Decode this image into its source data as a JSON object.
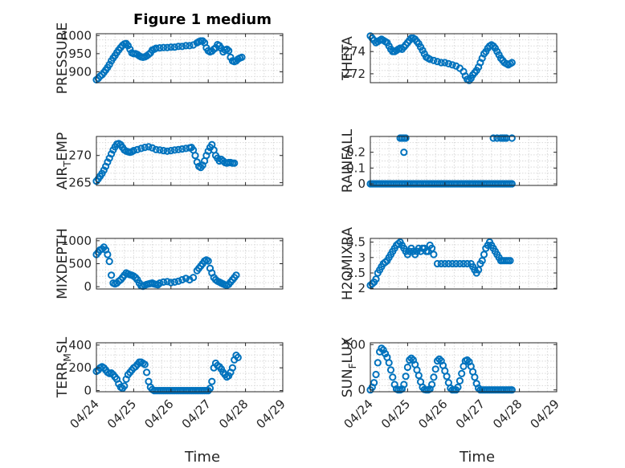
{
  "figure": {
    "title": "Figure 1 medium",
    "x_tick_labels": [
      "04/24",
      "04/25",
      "04/26",
      "04/27",
      "04/28",
      "04/29"
    ],
    "x_label": "Time",
    "marker_color": "#0072BD",
    "grid": true
  },
  "chart_data": [
    {
      "type": "scatter",
      "marker": "circle",
      "ylabel": "PRESSURE",
      "subscript": "",
      "ylabel_tail": "",
      "yticks": [
        900,
        950,
        1000
      ],
      "ylim": [
        870,
        1005
      ],
      "xlim": [
        0,
        5
      ],
      "grid": true,
      "x": [
        0,
        0.05,
        0.1,
        0.15,
        0.2,
        0.25,
        0.3,
        0.35,
        0.4,
        0.45,
        0.5,
        0.55,
        0.6,
        0.65,
        0.7,
        0.75,
        0.8,
        0.85,
        0.9,
        0.95,
        1.0,
        1.05,
        1.1,
        1.15,
        1.2,
        1.25,
        1.3,
        1.35,
        1.4,
        1.45,
        1.5,
        1.55,
        1.6,
        1.7,
        1.8,
        1.9,
        2.0,
        2.1,
        2.2,
        2.3,
        2.4,
        2.5,
        2.6,
        2.7,
        2.75,
        2.8,
        2.85,
        2.9,
        2.95,
        3.0,
        3.05,
        3.1,
        3.15,
        3.2,
        3.25,
        3.3,
        3.35,
        3.4,
        3.45,
        3.5,
        3.55,
        3.6,
        3.65,
        3.7,
        3.75,
        3.8,
        3.85,
        3.9
      ],
      "y": [
        878,
        882,
        888,
        892,
        898,
        905,
        912,
        920,
        930,
        938,
        945,
        953,
        960,
        967,
        973,
        977,
        978,
        972,
        962,
        952,
        950,
        950,
        948,
        944,
        941,
        940,
        941,
        944,
        948,
        952,
        960,
        962,
        965,
        966,
        967,
        967,
        968,
        968,
        970,
        970,
        972,
        972,
        974,
        980,
        983,
        985,
        985,
        980,
        966,
        958,
        955,
        957,
        962,
        966,
        975,
        972,
        965,
        955,
        960,
        962,
        958,
        940,
        930,
        928,
        930,
        935,
        938,
        940
      ]
    },
    {
      "type": "scatter",
      "marker": "circle",
      "ylabel": "THETA",
      "subscript": "",
      "ylabel_tail": "",
      "yticks": [
        272,
        274
      ],
      "ylim": [
        271.2,
        275.6
      ],
      "xlim": [
        0,
        5
      ],
      "grid": true,
      "x": [
        0,
        0.05,
        0.1,
        0.15,
        0.2,
        0.25,
        0.3,
        0.35,
        0.4,
        0.45,
        0.5,
        0.55,
        0.6,
        0.65,
        0.7,
        0.75,
        0.8,
        0.85,
        0.9,
        0.95,
        1.0,
        1.05,
        1.1,
        1.15,
        1.2,
        1.25,
        1.3,
        1.35,
        1.4,
        1.45,
        1.5,
        1.55,
        1.6,
        1.7,
        1.8,
        1.9,
        2.0,
        2.1,
        2.2,
        2.3,
        2.4,
        2.5,
        2.55,
        2.6,
        2.65,
        2.7,
        2.75,
        2.8,
        2.85,
        2.9,
        2.95,
        3.0,
        3.05,
        3.1,
        3.15,
        3.2,
        3.25,
        3.3,
        3.35,
        3.4,
        3.45,
        3.5,
        3.55,
        3.6,
        3.65,
        3.7,
        3.75,
        3.8
      ],
      "y": [
        275.4,
        275.2,
        275.0,
        274.8,
        274.9,
        275.0,
        275.1,
        275.0,
        274.9,
        274.8,
        274.5,
        274.2,
        274.0,
        274.0,
        274.1,
        274.2,
        274.3,
        274.2,
        274.4,
        274.6,
        274.8,
        275.0,
        275.2,
        275.2,
        275.1,
        274.9,
        274.7,
        274.4,
        274.1,
        273.8,
        273.5,
        273.4,
        273.3,
        273.2,
        273.1,
        273.0,
        273.0,
        272.9,
        272.8,
        272.7,
        272.5,
        272.2,
        271.8,
        271.5,
        271.4,
        271.6,
        271.9,
        272.1,
        272.3,
        272.6,
        273.0,
        273.4,
        273.8,
        274.0,
        274.3,
        274.5,
        274.6,
        274.5,
        274.3,
        274.0,
        273.7,
        273.4,
        273.2,
        273.0,
        272.9,
        272.8,
        272.9,
        273.0
      ]
    },
    {
      "type": "scatter",
      "marker": "circle",
      "ylabel": "AIR",
      "subscript": "T",
      "ylabel_tail": "EMP",
      "yticks": [
        265,
        270
      ],
      "ylim": [
        264.5,
        273.5
      ],
      "xlim": [
        0,
        5
      ],
      "grid": true,
      "x": [
        0,
        0.05,
        0.1,
        0.15,
        0.2,
        0.25,
        0.3,
        0.35,
        0.4,
        0.45,
        0.5,
        0.55,
        0.6,
        0.65,
        0.7,
        0.75,
        0.8,
        0.85,
        0.9,
        0.95,
        1.0,
        1.1,
        1.2,
        1.3,
        1.4,
        1.5,
        1.6,
        1.7,
        1.8,
        1.9,
        2.0,
        2.1,
        2.2,
        2.3,
        2.4,
        2.5,
        2.55,
        2.6,
        2.65,
        2.7,
        2.75,
        2.8,
        2.85,
        2.9,
        2.95,
        3.0,
        3.05,
        3.1,
        3.15,
        3.2,
        3.25,
        3.3,
        3.35,
        3.4,
        3.45,
        3.5,
        3.55,
        3.6,
        3.65,
        3.7
      ],
      "y": [
        265.3,
        265.7,
        266.2,
        266.7,
        267.3,
        268.0,
        268.8,
        269.5,
        270.3,
        271.0,
        271.6,
        272.1,
        272.2,
        272.0,
        271.5,
        271.0,
        270.8,
        270.7,
        270.6,
        270.7,
        270.9,
        271.1,
        271.3,
        271.5,
        271.6,
        271.4,
        271.1,
        271.0,
        270.9,
        270.8,
        270.9,
        271.0,
        271.1,
        271.2,
        271.3,
        271.4,
        271.5,
        271.0,
        270.0,
        268.8,
        268.0,
        267.8,
        268.2,
        269.0,
        270.0,
        270.8,
        271.5,
        272.0,
        271.0,
        270.0,
        269.5,
        269.0,
        269.3,
        269.0,
        268.7,
        268.6,
        268.7,
        268.7,
        268.6,
        268.6
      ]
    },
    {
      "type": "scatter",
      "marker": "circle",
      "ylabel": "RAINFALL",
      "subscript": "",
      "ylabel_tail": "",
      "yticks": [
        0,
        0.1,
        0.2
      ],
      "ylim": [
        -0.01,
        0.3
      ],
      "xlim": [
        0,
        5
      ],
      "grid": true,
      "x": [
        0,
        0.05,
        0.1,
        0.15,
        0.2,
        0.25,
        0.3,
        0.35,
        0.4,
        0.45,
        0.5,
        0.55,
        0.6,
        0.65,
        0.7,
        0.75,
        0.8,
        0.85,
        0.9,
        0.95,
        1.0,
        1.05,
        1.1,
        1.15,
        1.2,
        1.25,
        1.3,
        1.35,
        1.4,
        1.45,
        1.5,
        1.55,
        1.6,
        1.65,
        1.7,
        1.75,
        1.8,
        1.85,
        1.9,
        1.95,
        2.0,
        2.05,
        2.1,
        2.15,
        2.2,
        2.25,
        2.3,
        2.35,
        2.4,
        2.45,
        2.5,
        2.55,
        2.6,
        2.65,
        2.7,
        2.75,
        2.8,
        2.85,
        2.9,
        2.95,
        3.0,
        3.05,
        3.1,
        3.15,
        3.2,
        3.25,
        3.3,
        3.35,
        3.4,
        3.45,
        3.5,
        3.55,
        3.6,
        3.65,
        3.7,
        3.75,
        3.8,
        0.8,
        0.85,
        0.9,
        0.95,
        0.9,
        3.3,
        3.4,
        3.5,
        3.55,
        3.6,
        3.65,
        3.8
      ],
      "y": [
        0,
        0,
        0,
        0,
        0,
        0,
        0,
        0,
        0,
        0,
        0,
        0,
        0,
        0,
        0,
        0,
        0,
        0,
        0,
        0,
        0,
        0,
        0,
        0,
        0,
        0,
        0,
        0,
        0,
        0,
        0,
        0,
        0,
        0,
        0,
        0,
        0,
        0,
        0,
        0,
        0,
        0,
        0,
        0,
        0,
        0,
        0,
        0,
        0,
        0,
        0,
        0,
        0,
        0,
        0,
        0,
        0,
        0,
        0,
        0,
        0,
        0,
        0,
        0,
        0,
        0,
        0,
        0,
        0,
        0,
        0,
        0,
        0,
        0,
        0,
        0,
        0,
        0.29,
        0.29,
        0.29,
        0.29,
        0.2,
        0.29,
        0.29,
        0.29,
        0.29,
        0.29,
        0.29,
        0.29
      ]
    },
    {
      "type": "scatter",
      "marker": "circle",
      "ylabel": "MIXDEPTH",
      "subscript": "",
      "ylabel_tail": "",
      "yticks": [
        0,
        500,
        1000
      ],
      "ylim": [
        -50,
        1050
      ],
      "xlim": [
        0,
        5
      ],
      "grid": true,
      "x": [
        0,
        0.05,
        0.1,
        0.15,
        0.2,
        0.25,
        0.3,
        0.35,
        0.4,
        0.45,
        0.5,
        0.55,
        0.6,
        0.65,
        0.7,
        0.75,
        0.8,
        0.85,
        0.9,
        0.95,
        1.0,
        1.05,
        1.1,
        1.15,
        1.2,
        1.25,
        1.3,
        1.35,
        1.4,
        1.45,
        1.5,
        1.55,
        1.6,
        1.65,
        1.7,
        1.8,
        1.9,
        2.0,
        2.1,
        2.2,
        2.3,
        2.4,
        2.5,
        2.6,
        2.7,
        2.75,
        2.8,
        2.85,
        2.9,
        2.95,
        3.0,
        3.05,
        3.1,
        3.15,
        3.2,
        3.25,
        3.3,
        3.35,
        3.4,
        3.45,
        3.5,
        3.55,
        3.6,
        3.65,
        3.7,
        3.75
      ],
      "y": [
        700,
        750,
        800,
        820,
        860,
        800,
        700,
        550,
        250,
        80,
        60,
        80,
        120,
        150,
        200,
        250,
        300,
        280,
        260,
        250,
        230,
        200,
        150,
        80,
        20,
        10,
        30,
        50,
        60,
        70,
        80,
        60,
        50,
        40,
        80,
        100,
        110,
        90,
        100,
        120,
        150,
        180,
        150,
        200,
        350,
        400,
        450,
        500,
        560,
        580,
        560,
        400,
        300,
        200,
        150,
        120,
        100,
        80,
        60,
        40,
        30,
        50,
        100,
        150,
        200,
        250
      ]
    },
    {
      "type": "scatter",
      "marker": "circle",
      "ylabel": "H2OMIXRA",
      "subscript": "",
      "ylabel_tail": "",
      "yticks": [
        2,
        2.5,
        3,
        3.5
      ],
      "ylim": [
        1.98,
        3.62
      ],
      "xlim": [
        0,
        5
      ],
      "grid": true,
      "x": [
        0,
        0.05,
        0.1,
        0.15,
        0.2,
        0.25,
        0.3,
        0.35,
        0.4,
        0.45,
        0.5,
        0.55,
        0.6,
        0.65,
        0.7,
        0.75,
        0.8,
        0.85,
        0.9,
        0.95,
        1.0,
        1.05,
        1.1,
        1.15,
        1.2,
        1.25,
        1.3,
        1.35,
        1.4,
        1.45,
        1.5,
        1.55,
        1.6,
        1.65,
        1.7,
        1.8,
        1.9,
        2.0,
        2.1,
        2.2,
        2.3,
        2.4,
        2.5,
        2.6,
        2.7,
        2.75,
        2.8,
        2.85,
        2.9,
        2.95,
        3.0,
        3.05,
        3.1,
        3.15,
        3.2,
        3.25,
        3.3,
        3.35,
        3.4,
        3.45,
        3.5,
        3.55,
        3.6,
        3.65,
        3.7,
        3.75
      ],
      "y": [
        2.1,
        2.15,
        2.2,
        2.3,
        2.5,
        2.6,
        2.7,
        2.8,
        2.85,
        2.9,
        3.0,
        3.1,
        3.2,
        3.3,
        3.4,
        3.45,
        3.5,
        3.4,
        3.3,
        3.2,
        3.1,
        3.2,
        3.3,
        3.2,
        3.1,
        3.2,
        3.3,
        3.2,
        3.3,
        3.3,
        3.2,
        3.2,
        3.4,
        3.3,
        3.1,
        2.8,
        2.8,
        2.8,
        2.8,
        2.8,
        2.8,
        2.8,
        2.8,
        2.8,
        2.8,
        2.7,
        2.6,
        2.5,
        2.6,
        2.8,
        2.9,
        3.1,
        3.3,
        3.4,
        3.5,
        3.4,
        3.3,
        3.2,
        3.1,
        3.0,
        2.9,
        2.9,
        2.9,
        2.9,
        2.9,
        2.9
      ]
    },
    {
      "type": "scatter",
      "marker": "circle",
      "ylabel": "TERR",
      "subscript": "M",
      "ylabel_tail": "SL",
      "yticks": [
        0,
        200,
        400
      ],
      "ylim": [
        -10,
        420
      ],
      "xlim": [
        0,
        5
      ],
      "grid": true,
      "x": [
        0,
        0.05,
        0.1,
        0.15,
        0.2,
        0.25,
        0.3,
        0.35,
        0.4,
        0.45,
        0.5,
        0.55,
        0.6,
        0.65,
        0.7,
        0.75,
        0.8,
        0.85,
        0.9,
        0.95,
        1.0,
        1.05,
        1.1,
        1.15,
        1.2,
        1.25,
        1.3,
        1.35,
        1.4,
        1.45,
        1.5,
        1.55,
        1.6,
        1.65,
        1.7,
        1.75,
        1.8,
        1.85,
        1.9,
        1.95,
        2.0,
        2.05,
        2.1,
        2.15,
        2.2,
        2.25,
        2.3,
        2.35,
        2.4,
        2.45,
        2.5,
        2.55,
        2.6,
        2.65,
        2.7,
        2.75,
        2.8,
        2.85,
        2.9,
        2.95,
        3.0,
        3.05,
        3.1,
        3.15,
        3.2,
        3.25,
        3.3,
        3.35,
        3.4,
        3.45,
        3.5,
        3.55,
        3.6,
        3.65,
        3.7,
        3.75,
        3.8
      ],
      "y": [
        170,
        180,
        200,
        210,
        200,
        180,
        160,
        150,
        155,
        140,
        120,
        100,
        60,
        30,
        20,
        40,
        100,
        140,
        160,
        180,
        200,
        210,
        230,
        250,
        250,
        240,
        230,
        160,
        80,
        30,
        10,
        0,
        0,
        0,
        0,
        0,
        0,
        0,
        0,
        0,
        0,
        0,
        0,
        0,
        0,
        0,
        0,
        0,
        0,
        0,
        0,
        0,
        0,
        0,
        0,
        0,
        0,
        0,
        0,
        0,
        0,
        20,
        80,
        200,
        240,
        220,
        210,
        190,
        160,
        140,
        120,
        130,
        160,
        200,
        270,
        310,
        290
      ]
    },
    {
      "type": "scatter",
      "marker": "circle",
      "ylabel": "SUN",
      "subscript": "F",
      "ylabel_tail": "LUX",
      "yticks": [
        0,
        500
      ],
      "ylim": [
        -20,
        520
      ],
      "xlim": [
        0,
        5
      ],
      "grid": true,
      "x": [
        0,
        0.05,
        0.1,
        0.15,
        0.2,
        0.25,
        0.3,
        0.35,
        0.4,
        0.45,
        0.5,
        0.55,
        0.6,
        0.65,
        0.7,
        0.75,
        0.8,
        0.85,
        0.9,
        0.95,
        1.0,
        1.05,
        1.1,
        1.15,
        1.2,
        1.25,
        1.3,
        1.35,
        1.4,
        1.45,
        1.5,
        1.55,
        1.6,
        1.65,
        1.7,
        1.75,
        1.8,
        1.85,
        1.9,
        1.95,
        2.0,
        2.05,
        2.1,
        2.15,
        2.2,
        2.25,
        2.3,
        2.35,
        2.4,
        2.45,
        2.5,
        2.55,
        2.6,
        2.65,
        2.7,
        2.75,
        2.8,
        2.85,
        2.9,
        2.95,
        3.0,
        3.05,
        3.1,
        3.15,
        3.2,
        3.25,
        3.3,
        3.35,
        3.4,
        3.45,
        3.5,
        3.55,
        3.6,
        3.65,
        3.7,
        3.75,
        3.8
      ],
      "y": [
        0,
        30,
        80,
        170,
        300,
        420,
        460,
        440,
        400,
        360,
        300,
        220,
        140,
        60,
        10,
        0,
        0,
        10,
        60,
        150,
        250,
        330,
        350,
        330,
        280,
        220,
        160,
        90,
        30,
        5,
        0,
        0,
        10,
        60,
        140,
        230,
        320,
        340,
        320,
        270,
        210,
        150,
        80,
        20,
        0,
        0,
        0,
        30,
        100,
        180,
        260,
        320,
        330,
        310,
        260,
        200,
        140,
        70,
        20,
        0,
        0,
        0,
        0,
        0,
        0,
        0,
        0,
        0,
        0,
        0,
        0,
        0,
        0,
        0,
        0,
        0,
        0
      ]
    }
  ]
}
